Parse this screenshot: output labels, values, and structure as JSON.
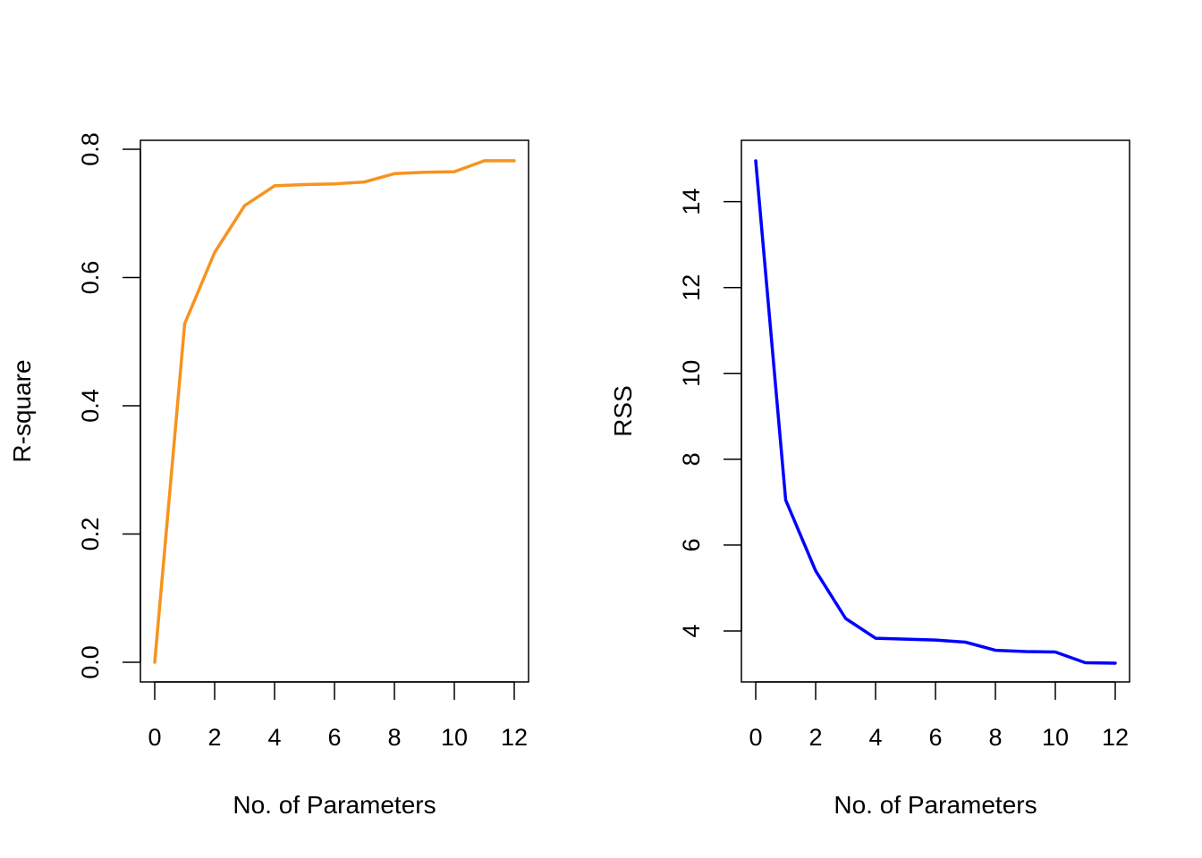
{
  "chart_data": [
    {
      "type": "line",
      "xlabel": "No. of Parameters",
      "ylabel": "R-square",
      "color": "#F7931E",
      "xlim": [
        0,
        12
      ],
      "ylim": [
        0,
        0.8
      ],
      "x_ticks": [
        "0",
        "2",
        "4",
        "6",
        "8",
        "10",
        "12"
      ],
      "y_ticks": [
        "0.0",
        "0.2",
        "0.4",
        "0.6",
        "0.8"
      ],
      "x": [
        0,
        1,
        2,
        3,
        4,
        5,
        6,
        7,
        8,
        9,
        10,
        11,
        12
      ],
      "y": [
        0.0,
        0.528,
        0.639,
        0.712,
        0.743,
        0.745,
        0.746,
        0.749,
        0.762,
        0.764,
        0.765,
        0.782,
        0.782
      ],
      "grid": false
    },
    {
      "type": "line",
      "xlabel": "No. of Parameters",
      "ylabel": "RSS",
      "color": "#0000FF",
      "xlim": [
        0,
        12
      ],
      "ylim": [
        3.25,
        14.95
      ],
      "x_ticks": [
        "0",
        "2",
        "4",
        "6",
        "8",
        "10",
        "12"
      ],
      "y_ticks": [
        "4",
        "6",
        "8",
        "10",
        "12",
        "14"
      ],
      "x": [
        0,
        1,
        2,
        3,
        4,
        5,
        6,
        7,
        8,
        9,
        10,
        11,
        12
      ],
      "y": [
        14.95,
        7.05,
        5.4,
        4.29,
        3.83,
        3.81,
        3.79,
        3.74,
        3.55,
        3.52,
        3.51,
        3.26,
        3.25
      ],
      "grid": false
    }
  ]
}
